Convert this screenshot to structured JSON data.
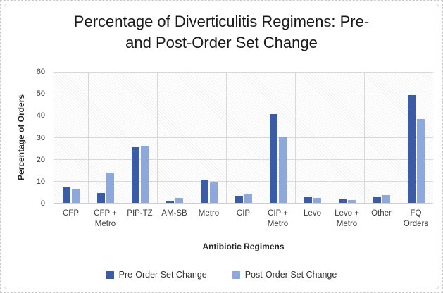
{
  "window": {
    "kind": "embedded-chart-object"
  },
  "title_text": "Percentage of Diverticulitis Regimens: Pre-\nand Post-Order Set Change",
  "chart_data": {
    "type": "bar",
    "title": "Percentage of Diverticulitis Regimens: Pre- and Post-Order Set Change",
    "xlabel": "Antibiotic Regimens",
    "ylabel": "Percentage of Orders",
    "ylim": [
      0,
      60
    ],
    "ytick_step": 10,
    "yticks": [
      0,
      10,
      20,
      30,
      40,
      50,
      60
    ],
    "grid": "horizontal-and-vertical-category-boundaries",
    "legend_position": "bottom",
    "plot_background": "diagonal-hatch",
    "categories": [
      "CFP",
      "CFP +\nMetro",
      "PIP-TZ",
      "AM-SB",
      "Metro",
      "CIP",
      "CIP +\nMetro",
      "Levo",
      "Levo +\nMetro",
      "Other",
      "FQ\nOrders"
    ],
    "series": [
      {
        "name": "Pre-Order Set Change",
        "color": "#3B5BA5",
        "values": [
          7.1,
          4.6,
          25.4,
          0.9,
          10.7,
          3.2,
          40.6,
          2.9,
          1.7,
          2.9,
          49.4
        ]
      },
      {
        "name": "Post-Order Set Change",
        "color": "#8FA8DC",
        "values": [
          6.4,
          13.9,
          26.2,
          2.3,
          9.3,
          4.3,
          30.2,
          2.4,
          1.3,
          3.6,
          38.5
        ]
      }
    ]
  },
  "colors": {
    "pre_series": "#3B5BA5",
    "post_series": "#8FA8DC",
    "gridline": "#d9d9d9",
    "axis_line": "#cfcfcf",
    "hatch_line": "#f0f0f0",
    "tick_text": "#404040",
    "title_text": "#1a1a1a",
    "frame_border": "#d9d9d9"
  }
}
